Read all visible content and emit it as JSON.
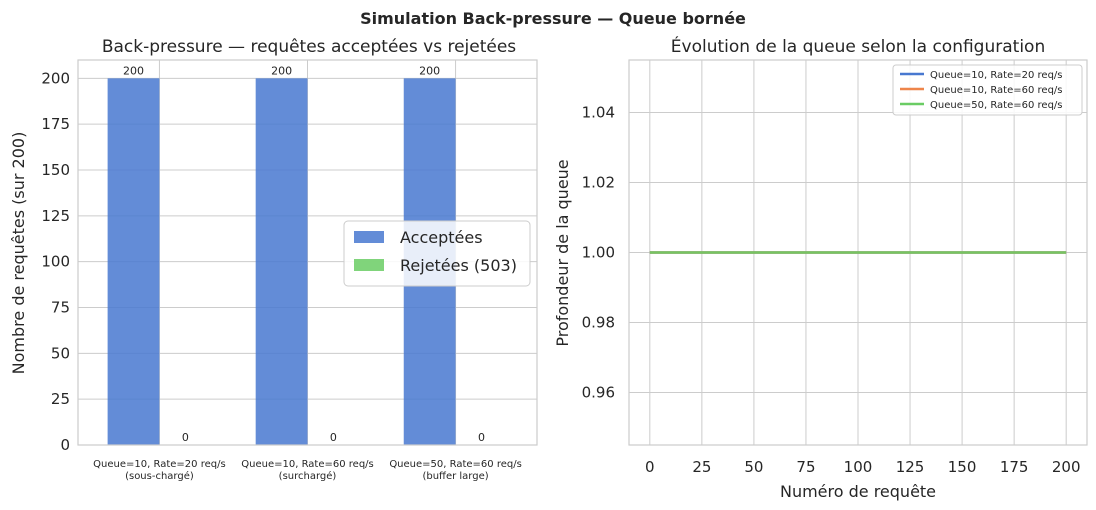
{
  "suptitle": "Simulation Back-pressure — Queue bornée",
  "chart_data": [
    {
      "type": "bar",
      "title": "Back-pressure — requêtes acceptées vs rejetées",
      "xlabel": "",
      "ylabel": "Nombre de requêtes (sur 200)",
      "categories": [
        [
          "Queue=10, Rate=20 req/s",
          "(sous-chargé)"
        ],
        [
          "Queue=10, Rate=60 req/s",
          "(surchargé)"
        ],
        [
          "Queue=50, Rate=60 req/s",
          "(buffer large)"
        ]
      ],
      "series": [
        {
          "name": "Acceptées",
          "values": [
            200,
            200,
            200
          ],
          "color": "#4878d0"
        },
        {
          "name": "Rejetées (503)",
          "values": [
            0,
            0,
            0
          ],
          "color": "#6acc64"
        }
      ],
      "ylim": [
        0,
        210
      ],
      "yticks": [
        0,
        25,
        50,
        75,
        100,
        125,
        150,
        175,
        200
      ],
      "legend": "center-right",
      "grid": true
    },
    {
      "type": "line",
      "title": "Évolution de la queue selon la configuration",
      "xlabel": "Numéro de requête",
      "ylabel": "Profondeur de la queue",
      "series": [
        {
          "name": "Queue=10, Rate=20 req/s",
          "x": [
            0,
            200
          ],
          "y": [
            1,
            1
          ],
          "color": "#4878d0"
        },
        {
          "name": "Queue=10, Rate=60 req/s",
          "x": [
            0,
            200
          ],
          "y": [
            1,
            1
          ],
          "color": "#ee854a"
        },
        {
          "name": "Queue=50, Rate=60 req/s",
          "x": [
            0,
            200
          ],
          "y": [
            1,
            1
          ],
          "color": "#6acc64"
        }
      ],
      "xlim": [
        -10,
        210
      ],
      "ylim": [
        0.945,
        1.055
      ],
      "xticks": [
        0,
        25,
        50,
        75,
        100,
        125,
        150,
        175,
        200
      ],
      "yticks": [
        0.96,
        0.98,
        1.0,
        1.02,
        1.04
      ],
      "yticklabels": [
        "0.96",
        "0.98",
        "1.00",
        "1.02",
        "1.04"
      ],
      "legend": "top-right",
      "grid": true
    }
  ]
}
